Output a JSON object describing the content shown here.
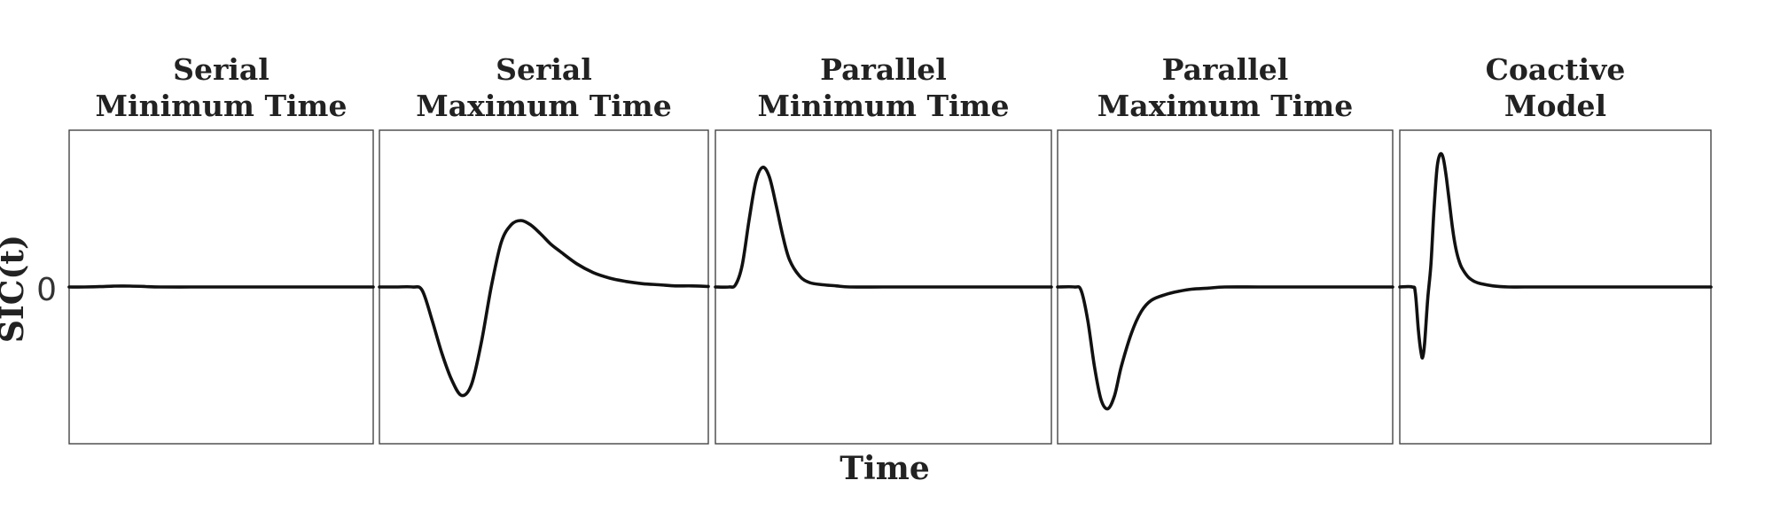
{
  "chart_data": {
    "type": "line",
    "xlabel": "Time",
    "ylabel": "SIC(t)",
    "ytick_labels": [
      "0"
    ],
    "grid": false,
    "panels": [
      {
        "title_lines": [
          "Serial",
          "Minimum Time"
        ],
        "series": [
          {
            "x": [
              0,
              0.05,
              0.1,
              0.15,
              0.2,
              0.25,
              0.3,
              0.4,
              0.5,
              0.6,
              0.7,
              0.8,
              0.9,
              1.0
            ],
            "y": [
              0,
              0,
              0.003,
              0.008,
              0.008,
              0.004,
              0,
              0,
              0,
              0,
              0,
              0,
              0,
              0
            ]
          }
        ]
      },
      {
        "title_lines": [
          "Serial",
          "Maximum Time"
        ],
        "series": [
          {
            "x": [
              0,
              0.05,
              0.1,
              0.13,
              0.16,
              0.19,
              0.22,
              0.25,
              0.28,
              0.31,
              0.34,
              0.37,
              0.4,
              0.43,
              0.46,
              0.49,
              0.52,
              0.55,
              0.6,
              0.65,
              0.7,
              0.75,
              0.8,
              0.85,
              0.9,
              0.95,
              1.0
            ],
            "y": [
              0,
              0,
              0,
              -0.03,
              -0.3,
              -0.6,
              -0.84,
              -0.98,
              -0.88,
              -0.5,
              0.0,
              0.4,
              0.56,
              0.6,
              0.56,
              0.48,
              0.39,
              0.32,
              0.21,
              0.13,
              0.08,
              0.05,
              0.03,
              0.02,
              0.01,
              0.01,
              0.005
            ]
          }
        ]
      },
      {
        "title_lines": [
          "Parallel",
          "Minimum Time"
        ],
        "series": [
          {
            "x": [
              0,
              0.04,
              0.06,
              0.08,
              0.1,
              0.12,
              0.14,
              0.16,
              0.18,
              0.2,
              0.22,
              0.25,
              0.28,
              0.32,
              0.36,
              0.4,
              0.5,
              0.6,
              0.7,
              0.8,
              0.9,
              1.0
            ],
            "y": [
              0,
              0,
              0.02,
              0.2,
              0.6,
              0.95,
              1.08,
              1.0,
              0.75,
              0.47,
              0.25,
              0.1,
              0.04,
              0.02,
              0.01,
              0,
              0,
              0,
              0,
              0,
              0,
              0
            ]
          }
        ]
      },
      {
        "title_lines": [
          "Parallel",
          "Maximum Time"
        ],
        "series": [
          {
            "x": [
              0,
              0.05,
              0.07,
              0.09,
              0.11,
              0.13,
              0.15,
              0.17,
              0.19,
              0.22,
              0.25,
              0.28,
              0.32,
              0.36,
              0.4,
              0.45,
              0.5,
              0.6,
              0.7,
              0.8,
              0.9,
              1.0
            ],
            "y": [
              0,
              0,
              -0.03,
              -0.3,
              -0.72,
              -1.02,
              -1.1,
              -0.98,
              -0.72,
              -0.42,
              -0.22,
              -0.12,
              -0.07,
              -0.04,
              -0.02,
              -0.01,
              0,
              0,
              0,
              0,
              0,
              0
            ]
          }
        ]
      },
      {
        "title_lines": [
          "Coactive",
          "Model"
        ],
        "series": [
          {
            "x": [
              0,
              0.04,
              0.05,
              0.06,
              0.07,
              0.075,
              0.08,
              0.09,
              0.1,
              0.11,
              0.12,
              0.13,
              0.14,
              0.15,
              0.16,
              0.17,
              0.18,
              0.19,
              0.2,
              0.22,
              0.24,
              0.26,
              0.3,
              0.35,
              0.4,
              0.5,
              0.6,
              0.8,
              1.0
            ],
            "y": [
              0,
              0,
              -0.05,
              -0.4,
              -0.62,
              -0.62,
              -0.5,
              -0.1,
              0.2,
              0.7,
              1.08,
              1.2,
              1.16,
              0.98,
              0.75,
              0.52,
              0.35,
              0.24,
              0.17,
              0.09,
              0.05,
              0.03,
              0.01,
              0,
              0,
              0,
              0,
              0,
              0
            ]
          }
        ]
      }
    ]
  }
}
